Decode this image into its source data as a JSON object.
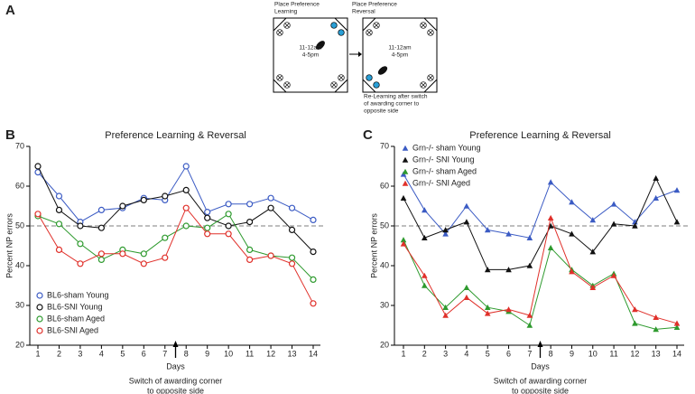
{
  "panel_labels": [
    "A",
    "B",
    "C"
  ],
  "diagram": {
    "left_title": [
      "Place Preference",
      "Learning"
    ],
    "right_title": [
      "Place Preference",
      "Reversal"
    ],
    "times": [
      "11-12am",
      "4-5pm"
    ],
    "caption": [
      "Re-Learning after switch",
      "of awarding corner to",
      "opposite side"
    ]
  },
  "chart_data": [
    {
      "type": "line",
      "title": "Preference Learning & Reversal",
      "ylabel": "Percent NP errors",
      "xlabel": "Days",
      "annotation": [
        "Switch of awarding corner",
        "to opposite side"
      ],
      "annotation_x": 7.5,
      "reference_line": 50,
      "legend": "lower left",
      "marker": "circle-open",
      "x": [
        1,
        2,
        3,
        4,
        5,
        6,
        7,
        8,
        9,
        10,
        11,
        12,
        13,
        14
      ],
      "xticks": [
        1,
        2,
        3,
        4,
        5,
        6,
        7,
        8,
        9,
        10,
        11,
        12,
        13,
        14
      ],
      "ylim": [
        20,
        70
      ],
      "yticks": [
        20,
        30,
        40,
        50,
        60,
        70
      ],
      "series": [
        {
          "name": "BL6-sham Young",
          "color": "#3b5bc4",
          "values": [
            63.5,
            57.5,
            51,
            54,
            54.5,
            57,
            56.5,
            65,
            53.5,
            55.5,
            55.5,
            57,
            54.5,
            51.5
          ]
        },
        {
          "name": "BL6-SNI Young",
          "color": "#111111",
          "values": [
            65,
            54,
            50,
            49.5,
            55,
            56.5,
            57.5,
            59,
            52,
            50,
            51,
            54.5,
            49,
            43.5
          ]
        },
        {
          "name": "BL6-sham Aged",
          "color": "#2e9a2e",
          "values": [
            52.5,
            50.5,
            45.5,
            41.5,
            44,
            43,
            47,
            50,
            49.5,
            53,
            44,
            42.5,
            42,
            36.5
          ]
        },
        {
          "name": "BL6-SNI Aged",
          "color": "#e0302a",
          "values": [
            53,
            44,
            40.5,
            43,
            43,
            40.5,
            42,
            54.5,
            48,
            48,
            41.5,
            42.5,
            40.5,
            30.5
          ]
        }
      ]
    },
    {
      "type": "line",
      "title": "Preference Learning & Reversal",
      "ylabel": "Percent NP errors",
      "xlabel": "Days",
      "annotation": [
        "Switch of awarding corner",
        "to opposite side"
      ],
      "annotation_x": 7.5,
      "reference_line": 50,
      "legend": "upper left",
      "marker": "triangle",
      "x": [
        1,
        2,
        3,
        4,
        5,
        6,
        7,
        8,
        9,
        10,
        11,
        12,
        13,
        14
      ],
      "xticks": [
        1,
        2,
        3,
        4,
        5,
        6,
        7,
        8,
        9,
        10,
        11,
        12,
        13,
        14
      ],
      "ylim": [
        20,
        70
      ],
      "yticks": [
        20,
        30,
        40,
        50,
        60,
        70
      ],
      "series": [
        {
          "name": "Grn-/- sham Young",
          "color": "#3b5bc4",
          "values": [
            63,
            54,
            48,
            55,
            49,
            48,
            47,
            61,
            56,
            51.5,
            55.5,
            51,
            57,
            59
          ]
        },
        {
          "name": "Grn-/- SNI Young",
          "color": "#111111",
          "values": [
            57,
            47,
            49,
            51,
            39,
            39,
            40,
            50,
            48,
            43.5,
            50.5,
            50,
            62,
            51
          ]
        },
        {
          "name": "Grn-/- sham Aged",
          "color": "#2e9a2e",
          "values": [
            46.5,
            35,
            29.5,
            34.5,
            29.5,
            28.5,
            25,
            44.5,
            39,
            35,
            38,
            25.5,
            24,
            24.5
          ]
        },
        {
          "name": "Grn-/- SNI Aged",
          "color": "#e0302a",
          "values": [
            45.5,
            37.5,
            27.5,
            32,
            28,
            29,
            27.5,
            52,
            38.5,
            34.5,
            37.5,
            29,
            27,
            25.5
          ]
        }
      ]
    }
  ]
}
